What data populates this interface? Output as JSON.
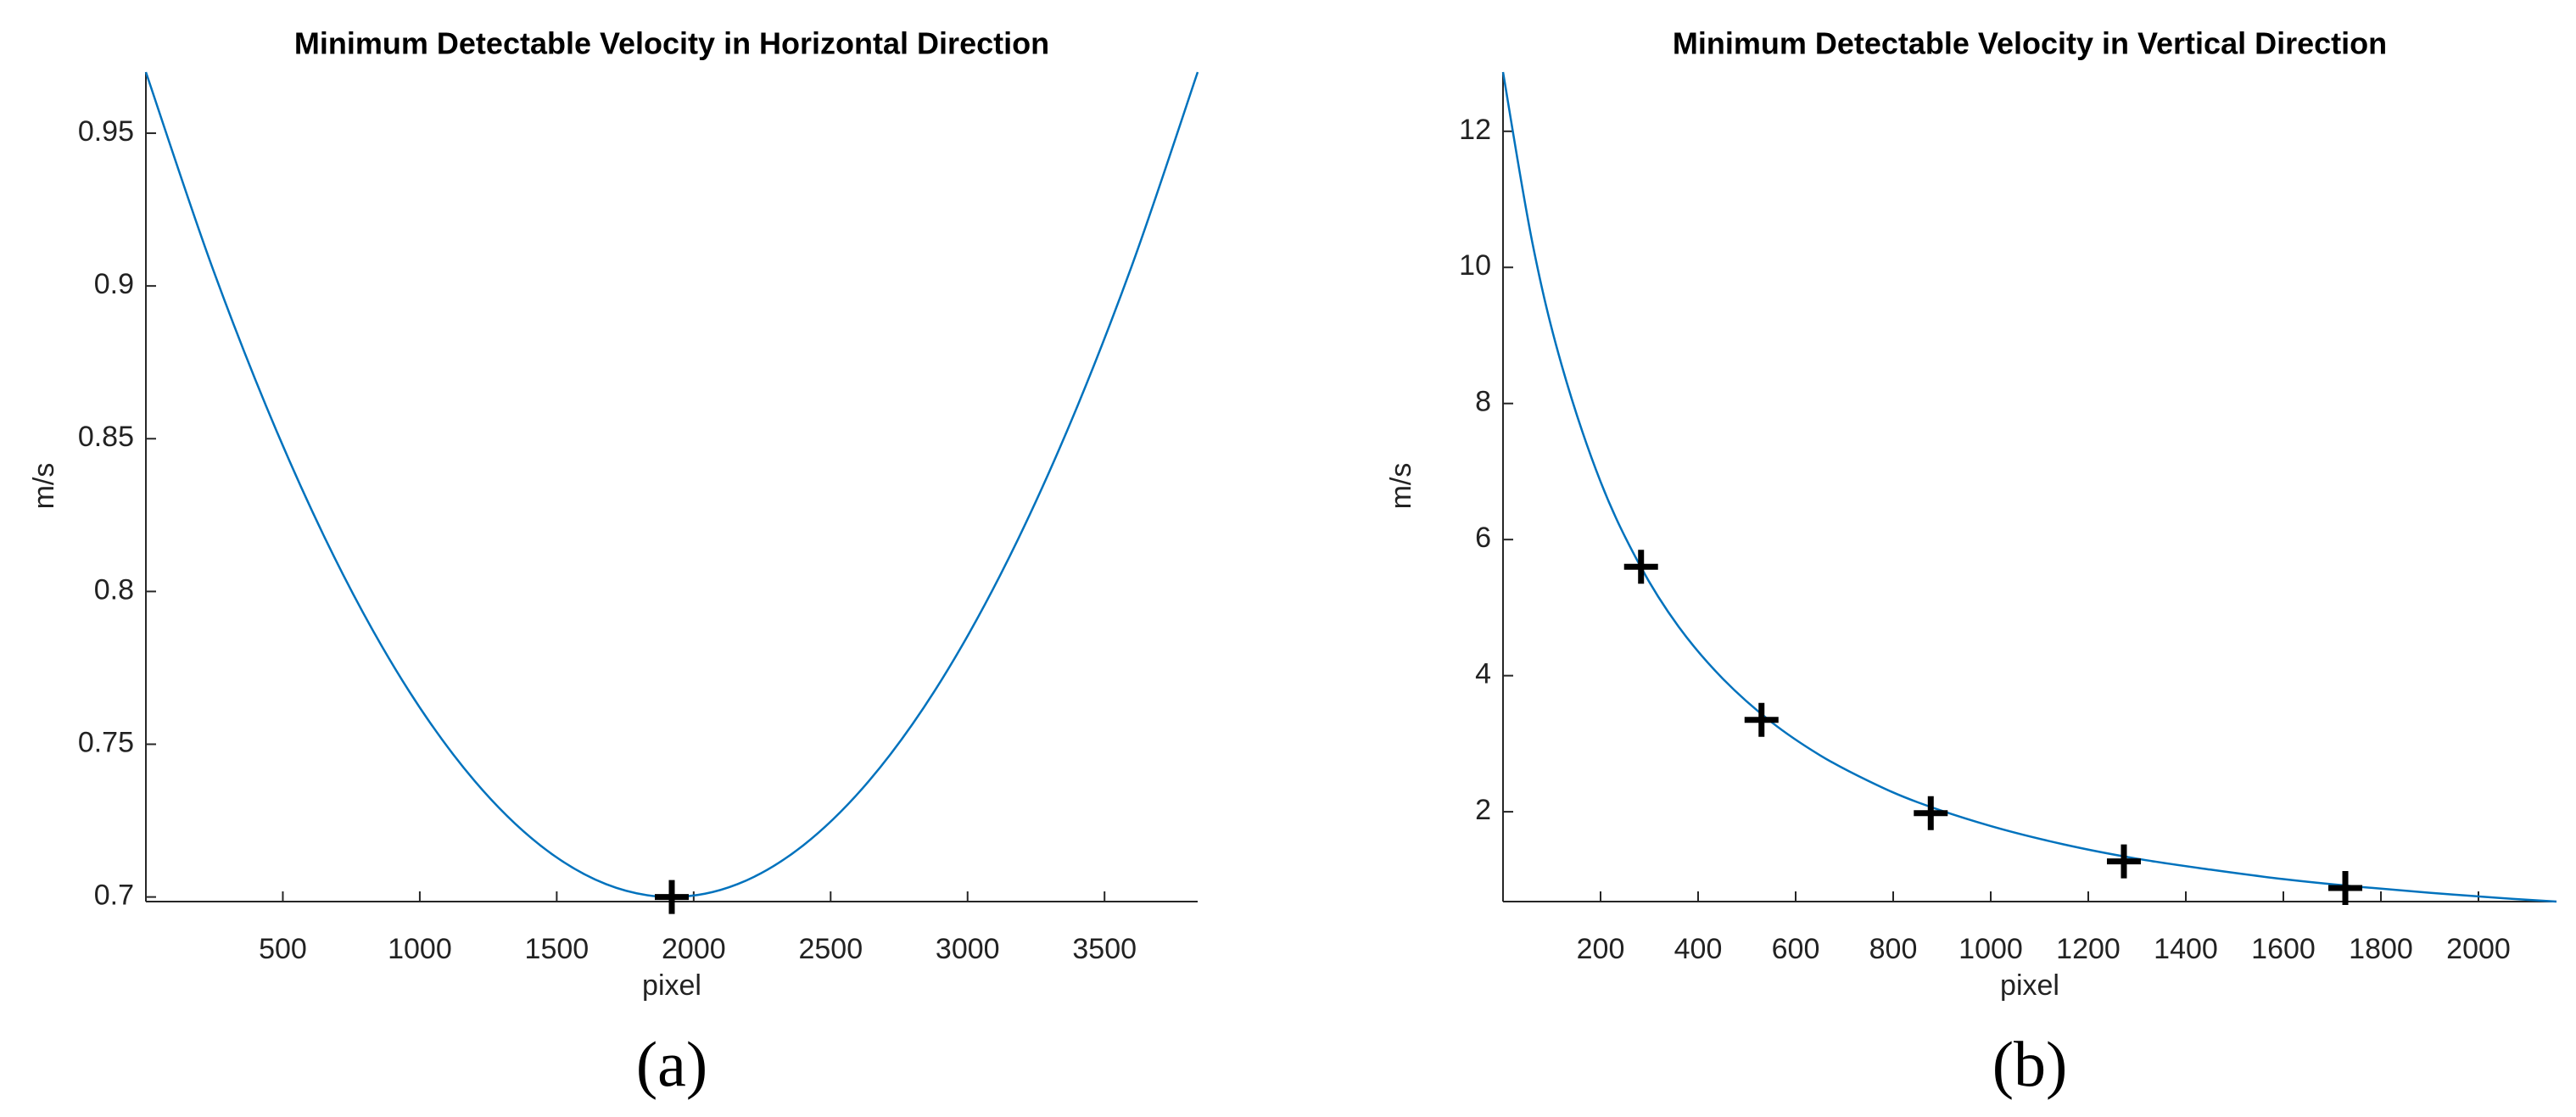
{
  "chart_data": [
    {
      "type": "line",
      "title": "Minimum Detectable Velocity in Horizontal Direction",
      "xlabel": "pixel",
      "ylabel": "m/s",
      "caption": "(a)",
      "color": "#0072bd",
      "x": [
        0,
        240,
        480,
        720,
        960,
        1200,
        1440,
        1680,
        1920,
        2160,
        2400,
        2640,
        2880,
        3120,
        3360,
        3600,
        3840
      ],
      "values": [
        0.97,
        0.9067,
        0.8519,
        0.8055,
        0.7675,
        0.738,
        0.7169,
        0.7042,
        0.7,
        0.7042,
        0.7169,
        0.738,
        0.7675,
        0.8055,
        0.8519,
        0.9067,
        0.97
      ],
      "markers": {
        "x": [
          1920
        ],
        "values": [
          0.7
        ],
        "color": "#000000"
      },
      "xlim": [
        0,
        3840
      ],
      "ylim": [
        0.6985,
        0.97
      ],
      "xticks": [
        500,
        1000,
        1500,
        2000,
        2500,
        3000,
        3500
      ],
      "yticks": [
        0.7,
        0.75,
        0.8,
        0.85,
        0.9,
        0.95
      ],
      "grid": false
    },
    {
      "type": "line",
      "title": "Minimum Detectable Velocity in Vertical Direction",
      "xlabel": "pixel",
      "ylabel": "m/s",
      "caption": "(b)",
      "color": "#0072bd",
      "x": [
        0,
        60,
        120,
        200,
        280,
        360,
        450,
        550,
        650,
        750,
        850,
        1000,
        1150,
        1300,
        1450,
        1600,
        1750,
        1900,
        2050,
        2160
      ],
      "values": [
        12.87,
        10.37,
        8.57,
        6.85,
        5.63,
        4.72,
        3.96,
        3.32,
        2.83,
        2.45,
        2.14,
        1.79,
        1.52,
        1.31,
        1.15,
        1.01,
        0.9,
        0.81,
        0.73,
        0.68
      ],
      "markers": {
        "x": [
          283,
          530,
          877,
          1273,
          1727
        ],
        "values": [
          5.6,
          3.35,
          1.98,
          1.27,
          0.88
        ],
        "color": "#000000"
      },
      "xlim": [
        0,
        2160
      ],
      "ylim": [
        0.68,
        12.87
      ],
      "xticks": [
        200,
        400,
        600,
        800,
        1000,
        1200,
        1400,
        1600,
        1800,
        2000
      ],
      "yticks": [
        2,
        4,
        6,
        8,
        10,
        12
      ],
      "grid": false
    }
  ]
}
